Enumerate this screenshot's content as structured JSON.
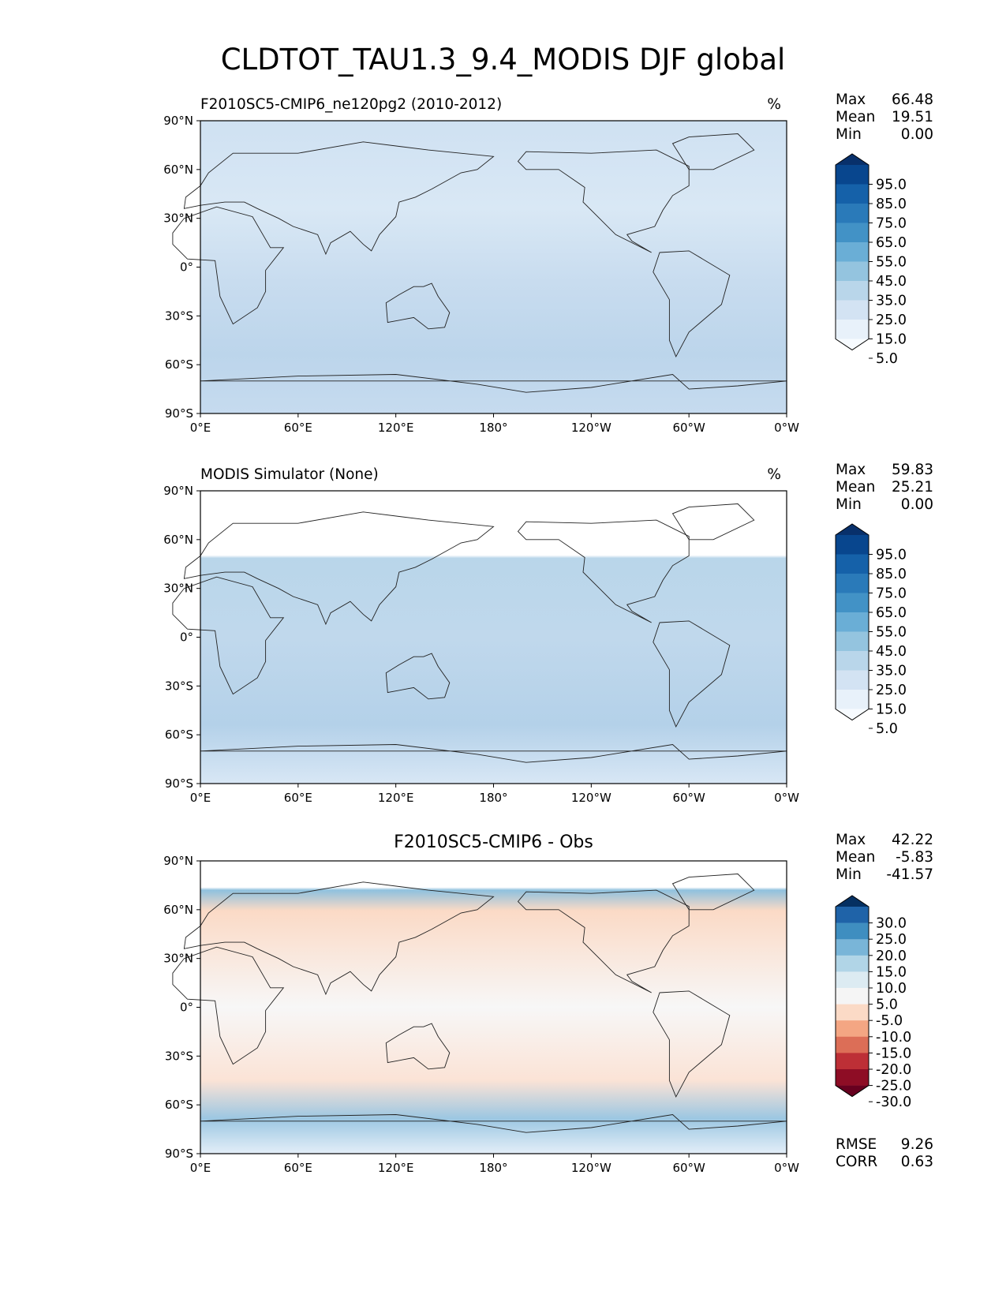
{
  "figure": {
    "title": "CLDTOT_TAU1.3_9.4_MODIS DJF global"
  },
  "axes": {
    "lat_ticks": [
      "90°N",
      "60°N",
      "30°N",
      "0°",
      "30°S",
      "60°S",
      "90°S"
    ],
    "lon_ticks": [
      "0°E",
      "60°E",
      "120°E",
      "180°",
      "120°W",
      "60°W",
      "0°W"
    ]
  },
  "panels": [
    {
      "title": "F2010SC5-CMIP6_ne120pg2 (2010-2012)",
      "units": "%",
      "stats": [
        {
          "label": "Max",
          "value": "66.48"
        },
        {
          "label": "Mean",
          "value": "19.51"
        },
        {
          "label": "Min",
          "value": "0.00"
        }
      ],
      "colorbar": {
        "labels": [
          "95.0",
          "85.0",
          "75.0",
          "65.0",
          "55.0",
          "45.0",
          "35.0",
          "25.0",
          "15.0",
          "5.0"
        ],
        "colors": [
          "#08306b",
          "#08468e",
          "#1561a9",
          "#2a7ab9",
          "#4292c6",
          "#6aaed6",
          "#94c4df",
          "#b9d6ea",
          "#d3e3f3",
          "#e8f1fa",
          "#f7fbff"
        ]
      }
    },
    {
      "title": "MODIS Simulator (None)",
      "units": "%",
      "stats": [
        {
          "label": "Max",
          "value": "59.83"
        },
        {
          "label": "Mean",
          "value": "25.21"
        },
        {
          "label": "Min",
          "value": "0.00"
        }
      ],
      "colorbar": {
        "labels": [
          "95.0",
          "85.0",
          "75.0",
          "65.0",
          "55.0",
          "45.0",
          "35.0",
          "25.0",
          "15.0",
          "5.0"
        ],
        "colors": [
          "#08306b",
          "#08468e",
          "#1561a9",
          "#2a7ab9",
          "#4292c6",
          "#6aaed6",
          "#94c4df",
          "#b9d6ea",
          "#d3e3f3",
          "#e8f1fa",
          "#f7fbff"
        ]
      }
    },
    {
      "title": "F2010SC5-CMIP6 - Obs",
      "units": "",
      "stats": [
        {
          "label": "Max",
          "value": "42.22"
        },
        {
          "label": "Mean",
          "value": "-5.83"
        },
        {
          "label": "Min",
          "value": "-41.57"
        }
      ],
      "metrics": [
        {
          "label": "RMSE",
          "value": "9.26"
        },
        {
          "label": "CORR",
          "value": "0.63"
        }
      ],
      "colorbar": {
        "labels": [
          "30.0",
          "25.0",
          "20.0",
          "15.0",
          "10.0",
          "5.0",
          "-5.0",
          "-10.0",
          "-15.0",
          "-20.0",
          "-25.0",
          "-30.0"
        ],
        "colors": [
          "#053061",
          "#1f63a8",
          "#3f8ec0",
          "#79b5d8",
          "#b1d5e7",
          "#dcebf2",
          "#f5f5f5",
          "#fbdac6",
          "#f4a683",
          "#dc6e57",
          "#bd2f36",
          "#8e0d25",
          "#67001f"
        ]
      }
    }
  ],
  "chart_data": {
    "type": "heatmap",
    "title": "CLDTOT_TAU1.3_9.4_MODIS DJF global",
    "xlabel": "",
    "ylabel": "",
    "x_ticks": [
      "0°E",
      "60°E",
      "120°E",
      "180°",
      "120°W",
      "60°W",
      "0°W"
    ],
    "y_ticks": [
      "90°N",
      "60°N",
      "30°N",
      "0°",
      "30°S",
      "60°S",
      "90°S"
    ],
    "xlim": [
      0,
      360
    ],
    "ylim": [
      -90,
      90
    ],
    "panels": [
      {
        "title": "F2010SC5-CMIP6_ne120pg2 (2010-2012)",
        "units": "%",
        "max": 66.48,
        "mean": 19.51,
        "min": 0.0,
        "levels": [
          5,
          15,
          25,
          35,
          45,
          55,
          65,
          75,
          85,
          95
        ]
      },
      {
        "title": "MODIS Simulator (None)",
        "units": "%",
        "max": 59.83,
        "mean": 25.21,
        "min": 0.0,
        "levels": [
          5,
          15,
          25,
          35,
          45,
          55,
          65,
          75,
          85,
          95
        ]
      },
      {
        "title": "F2010SC5-CMIP6 - Obs",
        "units": "",
        "max": 42.22,
        "mean": -5.83,
        "min": -41.57,
        "rmse": 9.26,
        "corr": 0.63,
        "levels": [
          -30,
          -25,
          -20,
          -15,
          -10,
          -5,
          5,
          10,
          15,
          20,
          25,
          30
        ]
      }
    ]
  }
}
